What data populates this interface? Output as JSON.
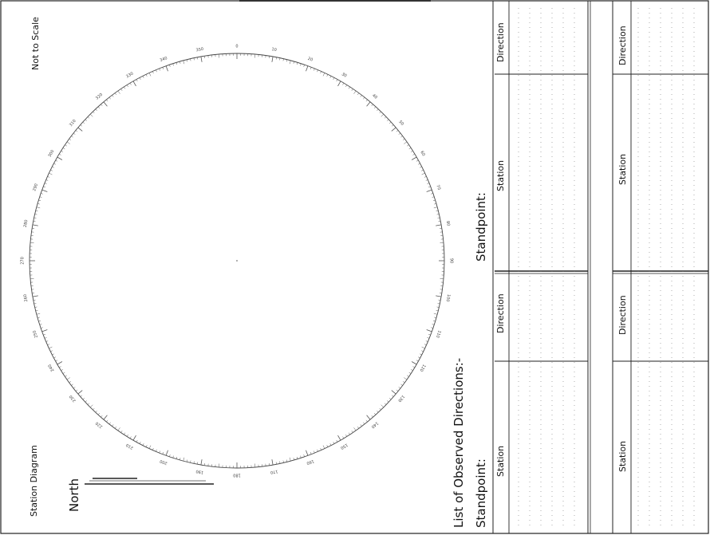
{
  "form": {
    "not_to_scale": "Not to Scale",
    "station_diagram": "Station Diagram",
    "north": "North",
    "list_title": "List of Observed Directions:-",
    "standpoint_label": "Standpoint:",
    "col_station": "Station",
    "col_direction": "Direction"
  },
  "dial": {
    "major_labels": [
      "0",
      "10",
      "20",
      "30",
      "40",
      "50",
      "60",
      "70",
      "80",
      "90",
      "100",
      "110",
      "120",
      "130",
      "140",
      "150",
      "160",
      "170",
      "180",
      "190",
      "200",
      "210",
      "220",
      "230",
      "240",
      "250",
      "260",
      "270",
      "280",
      "290",
      "300",
      "310",
      "320",
      "330",
      "340",
      "350"
    ]
  }
}
